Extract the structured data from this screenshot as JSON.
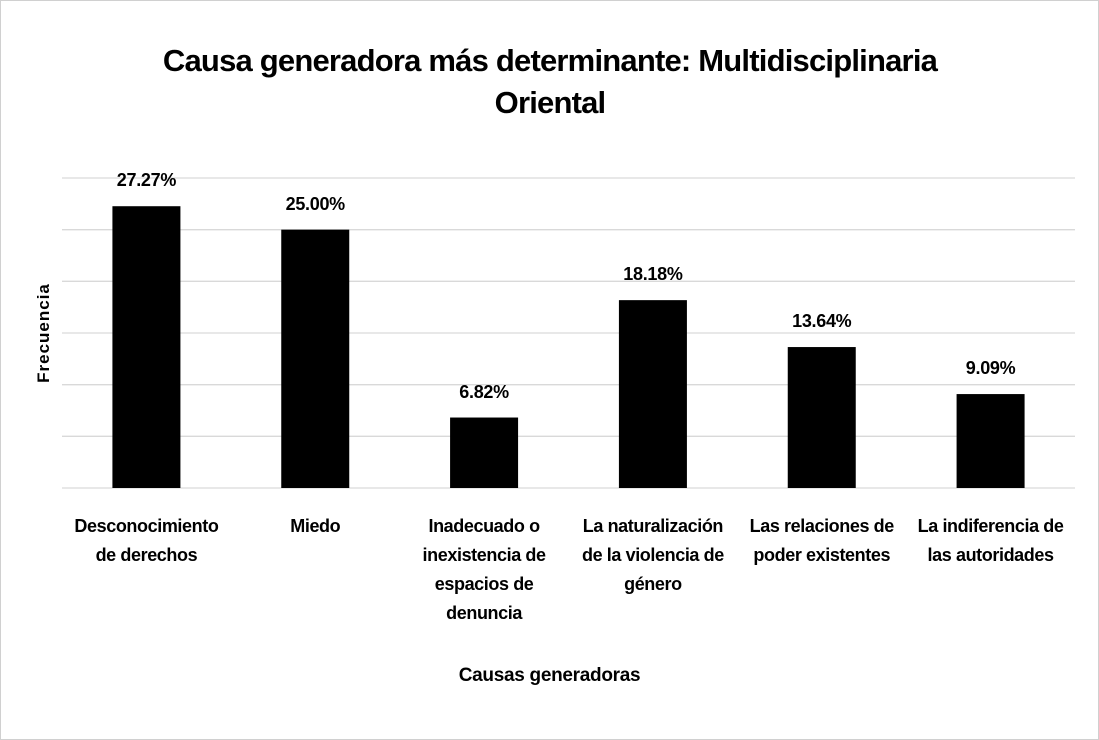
{
  "chart_data": {
    "type": "bar",
    "title": "Causa generadora más determinante: Multidisciplinaria Oriental",
    "ylabel": "Frecuencia",
    "xlabel": "Causas generadoras",
    "categories": [
      "Desconocimiento de derechos",
      "Miedo",
      "Inadecuado o inexistencia de espacios de denuncia",
      "La naturalización de la violencia de género",
      "Las relaciones de poder existentes",
      "La indiferencia de las autoridades"
    ],
    "values": [
      27.27,
      25.0,
      6.82,
      18.18,
      13.64,
      9.09
    ],
    "value_labels": [
      "27.27%",
      "25.00%",
      "6.82%",
      "18.18%",
      "13.64%",
      "9.09%"
    ],
    "color": "#000000",
    "ylim": [
      0,
      30
    ],
    "yticks": [
      0,
      5,
      10,
      15,
      20,
      25,
      30
    ],
    "grid": true
  }
}
